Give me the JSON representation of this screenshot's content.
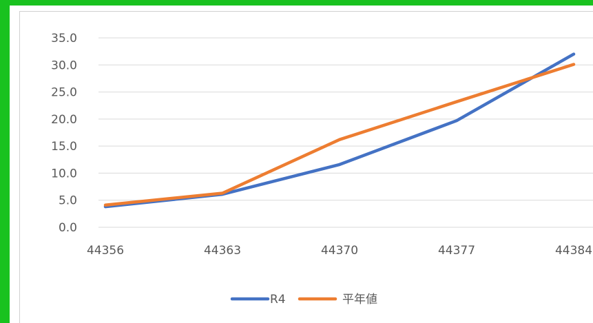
{
  "chart_data": {
    "type": "line",
    "title": "",
    "xlabel": "",
    "ylabel": "",
    "x": [
      44356,
      44363,
      44370,
      44377,
      44384
    ],
    "x_tick_labels": [
      "44356",
      "44363",
      "44370",
      "44377",
      "44384"
    ],
    "y_tick_labels": [
      "35.0",
      "30.0",
      "25.0",
      "20.0",
      "15.0",
      "10.0",
      "5.0",
      "0.0"
    ],
    "ylim": [
      0,
      35
    ],
    "y_ticks": [
      35,
      30,
      25,
      20,
      15,
      10,
      5,
      0
    ],
    "grid": "horizontal",
    "legend_position": "bottom",
    "series": [
      {
        "name": "R4",
        "values": [
          3.8,
          6.1,
          11.6,
          19.7,
          32.0
        ],
        "color": "#4472c4"
      },
      {
        "name": "平年値",
        "values": [
          4.1,
          6.3,
          16.2,
          23.2,
          30.1
        ],
        "color": "#ed7d31"
      }
    ]
  },
  "frame": {
    "border_color": "#19c21f"
  }
}
